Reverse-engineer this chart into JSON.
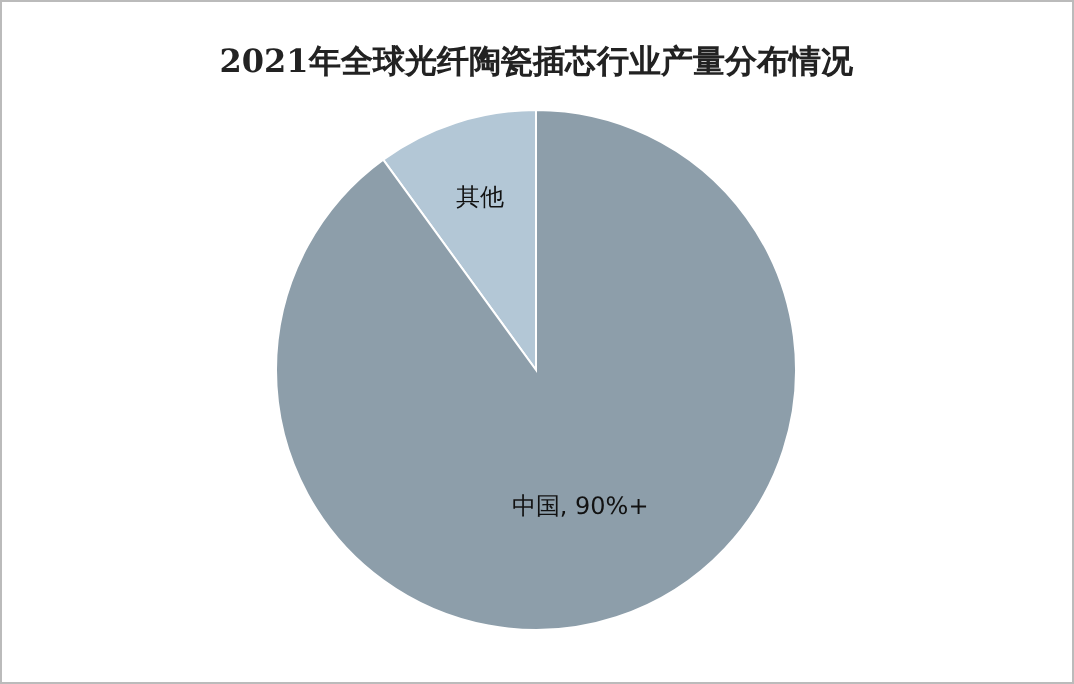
{
  "chart_data": {
    "type": "pie",
    "title": "2021年全球光纤陶瓷插芯行业产量分布情况",
    "categories": [
      "中国, 90%+",
      "其他"
    ],
    "values": [
      90,
      10
    ],
    "colors": [
      "#8d9eaa",
      "#b3c7d6"
    ],
    "legend": false
  }
}
